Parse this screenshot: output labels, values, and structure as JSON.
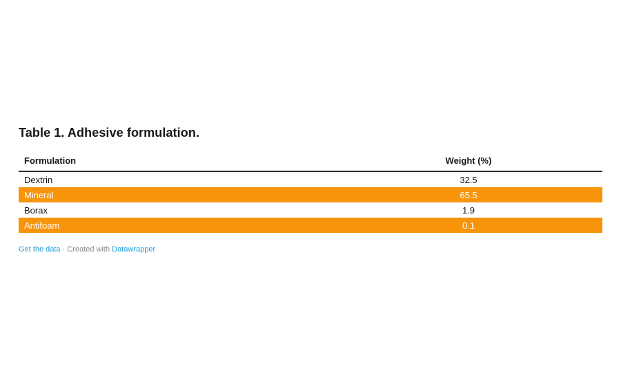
{
  "table": {
    "title": "Table 1. Adhesive formulation.",
    "columns": [
      {
        "label": "Formulation",
        "align": "left"
      },
      {
        "label": "Weight (%)",
        "align": "center"
      }
    ],
    "rows": [
      {
        "formulation": "Dextrin",
        "weight": "32.5",
        "highlighted": false
      },
      {
        "formulation": "Mineral",
        "weight": "65.5",
        "highlighted": true
      },
      {
        "formulation": "Borax",
        "weight": "1.9",
        "highlighted": false
      },
      {
        "formulation": "Antifoam",
        "weight": "0.1",
        "highlighted": true
      }
    ]
  },
  "chart_data": {
    "type": "table",
    "title": "Table 1. Adhesive formulation.",
    "columns": [
      "Formulation",
      "Weight (%)"
    ],
    "rows": [
      [
        "Dextrin",
        32.5
      ],
      [
        "Mineral",
        65.5
      ],
      [
        "Borax",
        1.9
      ],
      [
        "Antifoam",
        0.1
      ]
    ],
    "highlighted_rows": [
      "Mineral",
      "Antifoam"
    ]
  },
  "footer": {
    "get_data_label": "Get the data",
    "separator": "·",
    "credit_text": "Created with",
    "credit_link_label": "Datawrapper"
  },
  "colors": {
    "highlight": "#f7940a",
    "highlight_text": "#ffffff",
    "header_rule": "#2e2e2e",
    "text": "#161616",
    "link": "#1e9cd8",
    "muted": "#888888"
  }
}
